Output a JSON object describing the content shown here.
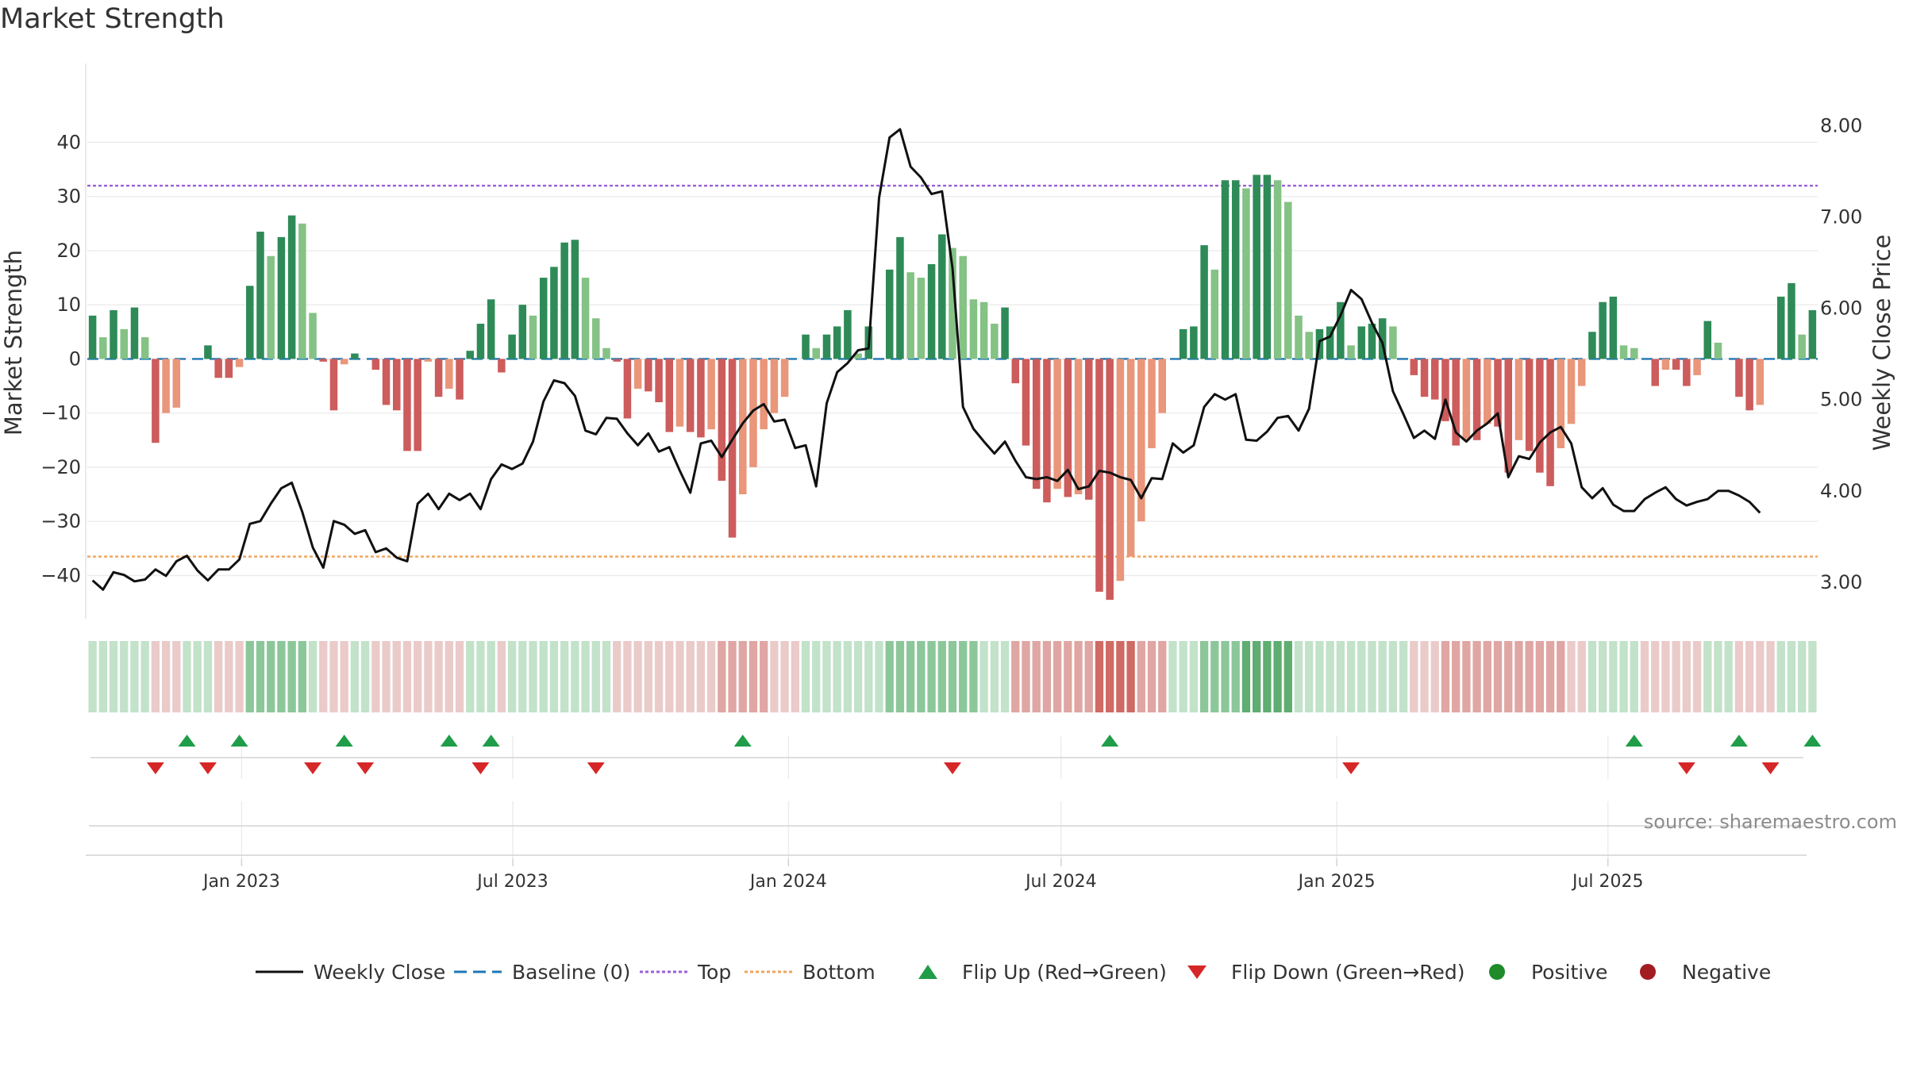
{
  "title": "Market Strength",
  "source": "source: sharemaestro.com",
  "colors": {
    "green_dark": "#2e8b57",
    "green_light": "#85c285",
    "red_dark": "#cd5c5c",
    "red_light": "#e9967a",
    "line": "#111111",
    "top": "#9b5fd6",
    "bottom": "#f0a35c",
    "baseline": "#1f77b4",
    "flip_up": "#1f9d48",
    "flip_down": "#d62728",
    "positive": "#1f8b2a",
    "negative": "#a31c22"
  },
  "chart_data": {
    "type": "bar",
    "title": "Market Strength",
    "ylabel_left": "Market Strength",
    "ylabel_right": "Weekly Close Price",
    "ylim_left": [
      -48,
      49
    ],
    "ylim_right": [
      2.6,
      8.35
    ],
    "yticks_left": [
      "40",
      "30",
      "20",
      "10",
      "0",
      "−10",
      "−20",
      "−30",
      "−40"
    ],
    "yticks_right": [
      "8.00",
      "7.00",
      "6.00",
      "5.00",
      "4.00",
      "3.00"
    ],
    "xticks": [
      "Jan 2023",
      "Jul 2023",
      "Jan 2024",
      "Jul 2024",
      "Jan 2025",
      "Jul 2025"
    ],
    "x_start": "2022-09-20",
    "week_days": 7,
    "top_threshold": 32,
    "bottom_threshold": -36.5,
    "strength": [
      8,
      4,
      9,
      5.5,
      9.5,
      4,
      -15.5,
      -10,
      -9,
      0,
      0,
      2.5,
      -3.5,
      -3.5,
      -1.5,
      13.5,
      23.5,
      19,
      22.5,
      26.5,
      25,
      8.5,
      -0.5,
      -9.5,
      -1,
      1,
      0,
      -2,
      -8.5,
      -9.5,
      -17,
      -17,
      -0.5,
      -7,
      -5.5,
      -7.5,
      1.5,
      6.5,
      11,
      -2.5,
      4.5,
      10,
      8,
      15,
      17,
      21.5,
      22,
      15,
      7.5,
      2,
      -0.5,
      -11,
      -5.5,
      -6,
      -8,
      -13.5,
      -12.5,
      -13.5,
      -14.5,
      -13,
      -22.5,
      -33,
      -25,
      -20,
      -13,
      -10,
      -7,
      0,
      4.5,
      2,
      4.5,
      6,
      9,
      1,
      6,
      0,
      16.5,
      22.5,
      16,
      15,
      17.5,
      23,
      20.5,
      19,
      11,
      10.5,
      6.5,
      9.5,
      -4.5,
      -16,
      -24,
      -26.5,
      -24,
      -25.5,
      -25,
      -26,
      -43,
      -44.5,
      -41,
      -36.5,
      -30,
      -16.5,
      -10,
      0,
      5.5,
      6,
      21,
      16.5,
      33,
      33,
      31.5,
      34,
      34,
      33,
      29,
      8,
      5,
      5.5,
      6,
      10.5,
      2.5,
      6,
      6.5,
      7.5,
      6,
      0,
      -3,
      -7,
      -7.5,
      -11.5,
      -16,
      -15,
      -15,
      -12,
      -12.5,
      -21,
      -15,
      -17,
      -21,
      -23.5,
      -16.5,
      -12,
      -5,
      5,
      10.5,
      11.5,
      2.5,
      2,
      0,
      -5,
      -2,
      -2,
      -5,
      -3,
      7,
      3,
      0,
      -7,
      -9.5,
      -8.5,
      0,
      11.5,
      14,
      4.5,
      9
    ],
    "weekly_close": [
      3.02,
      2.92,
      3.11,
      3.08,
      3.01,
      3.03,
      3.14,
      3.07,
      3.23,
      3.29,
      3.13,
      3.02,
      3.14,
      3.14,
      3.25,
      3.64,
      3.67,
      3.86,
      4.03,
      4.09,
      3.77,
      3.38,
      3.16,
      3.67,
      3.63,
      3.53,
      3.57,
      3.33,
      3.37,
      3.27,
      3.23,
      3.86,
      3.97,
      3.8,
      3.97,
      3.9,
      3.97,
      3.8,
      4.13,
      4.29,
      4.24,
      4.3,
      4.54,
      4.98,
      5.21,
      5.18,
      5.04,
      4.66,
      4.62,
      4.8,
      4.79,
      4.63,
      4.5,
      4.63,
      4.43,
      4.48,
      4.22,
      3.98,
      4.52,
      4.55,
      4.37,
      4.56,
      4.74,
      4.88,
      4.95,
      4.76,
      4.78,
      4.47,
      4.5,
      4.05,
      4.96,
      5.3,
      5.4,
      5.54,
      5.56,
      7.21,
      7.87,
      7.96,
      7.55,
      7.43,
      7.25,
      7.28,
      6.44,
      4.92,
      4.68,
      4.54,
      4.41,
      4.54,
      4.33,
      4.15,
      4.13,
      4.15,
      4.11,
      4.23,
      4.02,
      4.05,
      4.22,
      4.2,
      4.15,
      4.12,
      3.92,
      4.14,
      4.13,
      4.52,
      4.42,
      4.5,
      4.92,
      5.06,
      5.0,
      5.06,
      4.56,
      4.55,
      4.65,
      4.8,
      4.82,
      4.66,
      4.9,
      5.64,
      5.69,
      5.92,
      6.2,
      6.1,
      5.84,
      5.62,
      5.09,
      4.84,
      4.58,
      4.66,
      4.57,
      5.0,
      4.64,
      4.54,
      4.66,
      4.74,
      4.85,
      4.15,
      4.38,
      4.35,
      4.53,
      4.64,
      4.7,
      4.52,
      4.04,
      3.92,
      4.03,
      3.85,
      3.78,
      3.78,
      3.91,
      3.98,
      4.04,
      3.91,
      3.84,
      3.88,
      3.91,
      4.0,
      4.0,
      3.95,
      3.88,
      3.76
    ],
    "color_strip_levels": [
      1,
      1,
      1,
      1,
      1,
      1,
      -1,
      -1,
      -1,
      1,
      1,
      1,
      -1,
      -1,
      -1,
      2,
      2,
      2,
      2,
      2,
      2,
      1,
      -1,
      -1,
      -1,
      1,
      1,
      -1,
      -1,
      -1,
      -1,
      -1,
      -1,
      -1,
      -1,
      -1,
      1,
      1,
      1,
      -1,
      1,
      1,
      1,
      1,
      1,
      1,
      1,
      1,
      1,
      1,
      -1,
      -1,
      -1,
      -1,
      -1,
      -1,
      -1,
      -1,
      -1,
      -1,
      -2,
      -2,
      -2,
      -2,
      -2,
      -1,
      -1,
      -1,
      1,
      1,
      1,
      1,
      1,
      1,
      1,
      1,
      2,
      2,
      2,
      2,
      2,
      2,
      2,
      2,
      2,
      1,
      1,
      1,
      -2,
      -2,
      -2,
      -2,
      -2,
      -2,
      -2,
      -2,
      -3,
      -3,
      -3,
      -3,
      -2,
      -2,
      -2,
      1,
      1,
      1,
      2,
      2,
      2,
      2,
      3,
      3,
      3,
      3,
      3,
      1,
      1,
      1,
      1,
      1,
      1,
      1,
      1,
      1,
      1,
      1,
      -1,
      -1,
      -1,
      -2,
      -2,
      -2,
      -2,
      -2,
      -2,
      -2,
      -2,
      -2,
      -2,
      -2,
      -2,
      -1,
      -1,
      1,
      1,
      1,
      1,
      1,
      -1,
      -1,
      -1,
      -1,
      -1,
      -1,
      1,
      1,
      1,
      -1,
      -1,
      -1,
      -1,
      1,
      1,
      1,
      1
    ],
    "flip_up_weeks": [
      9,
      14,
      24,
      34,
      38,
      62,
      97,
      147,
      157,
      164
    ],
    "flip_down_weeks": [
      6,
      11,
      21,
      26,
      37,
      48,
      82,
      120,
      152,
      160
    ],
    "legend": [
      {
        "name": "Weekly Close",
        "marker": "line"
      },
      {
        "name": "Baseline (0)",
        "marker": "dash"
      },
      {
        "name": "Top",
        "marker": "dot-purple"
      },
      {
        "name": "Bottom",
        "marker": "dot-orange"
      },
      {
        "name": "Flip Up (Red→Green)",
        "marker": "triangle-up"
      },
      {
        "name": "Flip Down (Green→Red)",
        "marker": "triangle-down"
      },
      {
        "name": "Positive",
        "marker": "circle-green"
      },
      {
        "name": "Negative",
        "marker": "circle-red"
      }
    ]
  }
}
